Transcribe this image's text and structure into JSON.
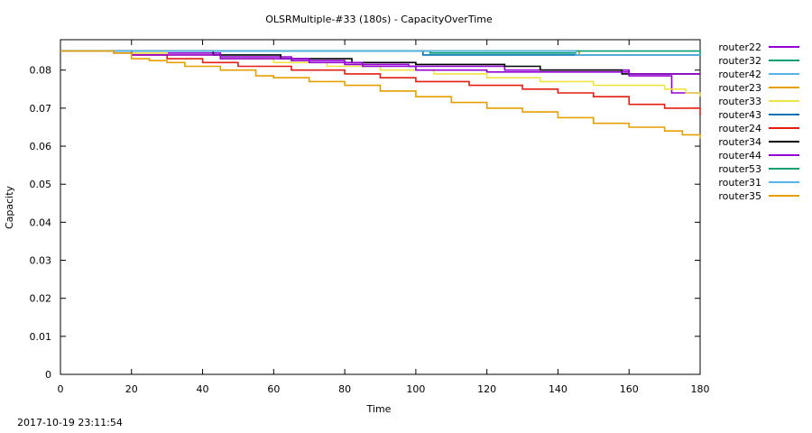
{
  "chart_data": {
    "type": "line",
    "title": "OLSRMultiple-#33 (180s) - CapacityOverTime",
    "xlabel": "Time",
    "ylabel": "Capacity",
    "xlim": [
      0,
      180
    ],
    "ylim": [
      0,
      0.088
    ],
    "x_ticks": [
      0,
      20,
      40,
      60,
      80,
      100,
      120,
      140,
      160,
      180
    ],
    "y_ticks": [
      0,
      0.01,
      0.02,
      0.03,
      0.04,
      0.05,
      0.06,
      0.07,
      0.08
    ],
    "grid": false,
    "legend_position": "outside-right",
    "series": [
      {
        "name": "router22",
        "color": "#9400d3",
        "x": [
          0,
          12,
          15,
          20,
          25,
          45,
          65,
          80,
          98,
          125,
          160,
          172,
          180
        ],
        "y": [
          0.085,
          0.085,
          0.0845,
          0.0845,
          0.0845,
          0.0835,
          0.0825,
          0.0815,
          0.081,
          0.08,
          0.0785,
          0.074,
          0.073
        ]
      },
      {
        "name": "router32",
        "color": "#009e73",
        "x": [
          0,
          100,
          104,
          142,
          145,
          180
        ],
        "y": [
          0.085,
          0.085,
          0.0845,
          0.0845,
          0.084,
          0.084
        ]
      },
      {
        "name": "router42",
        "color": "#56b4e9",
        "x": [
          0,
          115,
          143,
          146,
          180
        ],
        "y": [
          0.085,
          0.085,
          0.085,
          0.084,
          0.084
        ]
      },
      {
        "name": "router23",
        "color": "#e69f00",
        "x": [
          0,
          146,
          180
        ],
        "y": [
          0.085,
          0.084,
          0.084
        ]
      },
      {
        "name": "router33",
        "color": "#f0e442",
        "x": [
          0,
          12,
          20,
          30,
          45,
          60,
          75,
          90,
          105,
          120,
          135,
          150,
          170,
          176,
          180
        ],
        "y": [
          0.085,
          0.085,
          0.0845,
          0.084,
          0.083,
          0.082,
          0.081,
          0.08,
          0.079,
          0.078,
          0.077,
          0.076,
          0.075,
          0.074,
          0.073
        ]
      },
      {
        "name": "router43",
        "color": "#0072b2",
        "x": [
          0,
          95,
          102,
          145,
          180
        ],
        "y": [
          0.085,
          0.085,
          0.084,
          0.084,
          0.084
        ]
      },
      {
        "name": "router24",
        "color": "#e51e10",
        "x": [
          0,
          12,
          20,
          30,
          40,
          50,
          65,
          80,
          90,
          100,
          115,
          130,
          140,
          150,
          160,
          170,
          180
        ],
        "y": [
          0.085,
          0.085,
          0.084,
          0.083,
          0.082,
          0.081,
          0.08,
          0.079,
          0.078,
          0.077,
          0.076,
          0.075,
          0.074,
          0.073,
          0.071,
          0.07,
          0.068
        ]
      },
      {
        "name": "router34",
        "color": "#000000",
        "x": [
          0,
          25,
          43,
          62,
          82,
          100,
          125,
          135,
          158,
          180
        ],
        "y": [
          0.085,
          0.085,
          0.084,
          0.083,
          0.082,
          0.0815,
          0.081,
          0.08,
          0.079,
          0.079
        ]
      },
      {
        "name": "router44",
        "color": "#9400d3",
        "x": [
          0,
          12,
          20,
          45,
          70,
          85,
          100,
          120,
          160,
          180
        ],
        "y": [
          0.085,
          0.085,
          0.084,
          0.083,
          0.082,
          0.081,
          0.08,
          0.0795,
          0.079,
          0.079
        ]
      },
      {
        "name": "router53",
        "color": "#009e73",
        "x": [
          0,
          100,
          180
        ],
        "y": [
          0.085,
          0.085,
          0.084
        ]
      },
      {
        "name": "router31",
        "color": "#56b4e9",
        "x": [
          0,
          100,
          145,
          180
        ],
        "y": [
          0.085,
          0.085,
          0.084,
          0.084
        ]
      },
      {
        "name": "router35",
        "color": "#e69f00",
        "x": [
          0,
          12,
          15,
          20,
          25,
          30,
          35,
          45,
          55,
          60,
          70,
          80,
          90,
          100,
          110,
          120,
          130,
          140,
          150,
          160,
          170,
          175,
          180
        ],
        "y": [
          0.085,
          0.085,
          0.0845,
          0.083,
          0.0825,
          0.082,
          0.081,
          0.08,
          0.0785,
          0.078,
          0.077,
          0.076,
          0.0745,
          0.073,
          0.0715,
          0.07,
          0.069,
          0.0675,
          0.066,
          0.065,
          0.064,
          0.063,
          0.062
        ]
      }
    ]
  },
  "footer": {
    "timestamp": "2017-10-19 23:11:54"
  }
}
